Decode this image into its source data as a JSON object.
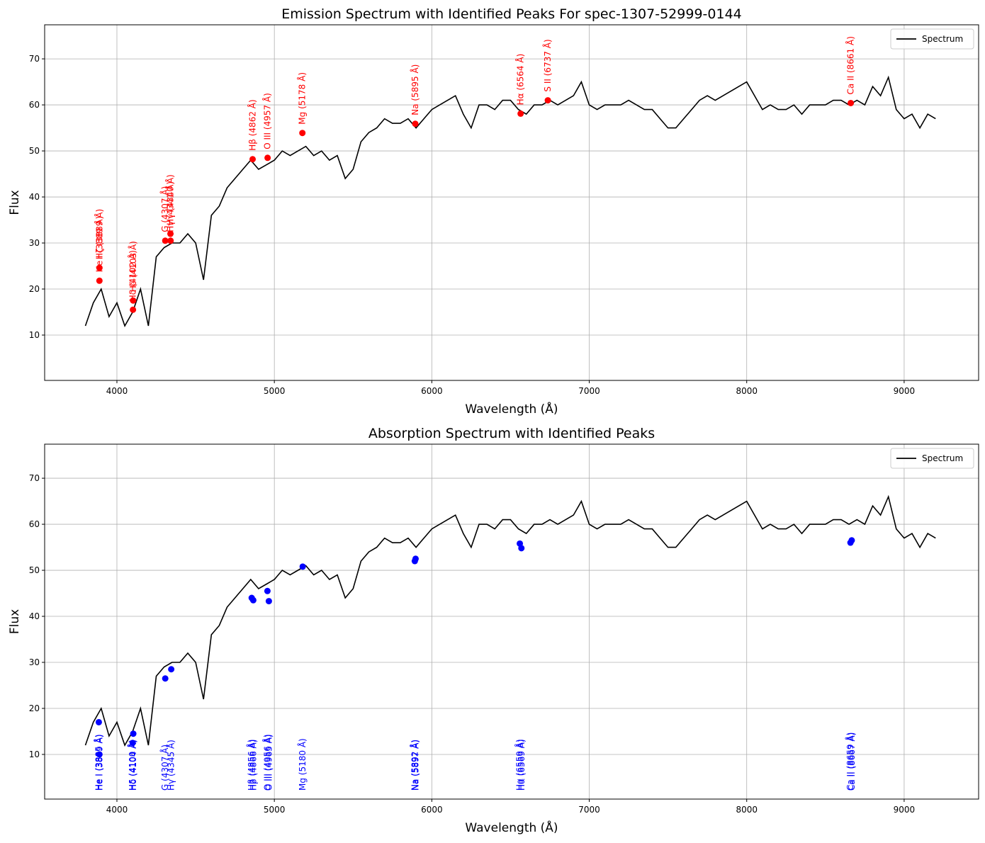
{
  "chart_data": [
    {
      "type": "line",
      "title": "Emission Spectrum with Identified Peaks For spec-1307-52999-0144",
      "x_label": "Wavelength (Å)",
      "y_label": "Flux",
      "xlim": [
        3541,
        9473
      ],
      "ylim": [
        0.15,
        77.4
      ],
      "xticks": [
        4000,
        5000,
        6000,
        7000,
        8000,
        9000
      ],
      "yticks": [
        10,
        20,
        30,
        40,
        50,
        60,
        70
      ],
      "grid": true,
      "legend": "upper right",
      "x": [
        3800,
        3850,
        3900,
        3950,
        4000,
        4050,
        4100,
        4150,
        4200,
        4250,
        4300,
        4350,
        4400,
        4450,
        4500,
        4550,
        4600,
        4650,
        4700,
        4750,
        4800,
        4850,
        4900,
        4950,
        5000,
        5050,
        5100,
        5150,
        5200,
        5250,
        5300,
        5350,
        5400,
        5450,
        5500,
        5550,
        5600,
        5650,
        5700,
        5750,
        5800,
        5850,
        5900,
        5950,
        6000,
        6050,
        6100,
        6150,
        6200,
        6250,
        6300,
        6350,
        6400,
        6450,
        6500,
        6550,
        6600,
        6650,
        6700,
        6750,
        6800,
        6850,
        6900,
        6950,
        7000,
        7050,
        7100,
        7150,
        7200,
        7250,
        7300,
        7350,
        7400,
        7450,
        7500,
        7550,
        7600,
        7650,
        7700,
        7750,
        7800,
        7850,
        7900,
        7950,
        8000,
        8050,
        8100,
        8150,
        8200,
        8250,
        8300,
        8350,
        8400,
        8450,
        8500,
        8550,
        8600,
        8650,
        8700,
        8750,
        8800,
        8850,
        8900,
        8950,
        9000,
        9050,
        9100,
        9150,
        9200
      ],
      "series": [
        {
          "name": "Spectrum",
          "color": "#000000",
          "values": [
            12,
            17,
            20,
            14,
            17,
            12,
            15,
            20,
            12,
            27,
            29,
            30,
            30,
            32,
            30,
            22,
            36,
            38,
            42,
            44,
            46,
            48,
            46,
            47,
            48,
            50,
            49,
            50,
            51,
            49,
            50,
            48,
            49,
            44,
            46,
            52,
            54,
            55,
            57,
            56,
            56,
            57,
            55,
            57,
            59,
            60,
            61,
            62,
            58,
            55,
            60,
            60,
            59,
            61,
            61,
            59,
            58,
            60,
            60,
            61,
            60,
            61,
            62,
            65,
            60,
            59,
            60,
            60,
            60,
            61,
            60,
            59,
            59,
            57,
            55,
            55,
            57,
            59,
            61,
            62,
            61,
            62,
            63,
            64,
            65,
            62,
            59,
            60,
            59,
            59,
            60,
            58,
            60,
            60,
            60,
            61,
            61,
            60,
            61,
            60,
            64,
            62,
            66,
            59,
            57,
            58,
            55,
            58,
            57
          ]
        }
      ],
      "peaks": {
        "color": "#ff0000",
        "placement": "above",
        "x": [
          3889,
          3889,
          4102,
          4103,
          4307,
          4340,
          4341,
          4862,
          4957,
          5178,
          5895,
          6564,
          6737,
          8661
        ],
        "y": [
          21.8,
          24.6,
          15.5,
          17.5,
          30.5,
          32,
          30.5,
          48.2,
          48.5,
          53.9,
          55.9,
          58.1,
          61,
          60.4
        ],
        "labels": [
          "He I (3889 Å)",
          "Hζ (3889 Å)",
          "Hδ (4102 Å)",
          "Hδ (4103 Å)",
          "G (4307 Å)",
          "Hγ (4340 Å)",
          "Hγ (4341 Å)",
          "Hβ (4862 Å)",
          "O III (4957 Å)",
          "Mg (5178 Å)",
          "Na (5895 Å)",
          "Hα (6564 Å)",
          "S II (6737 Å)",
          "Ca II (8661 Å)"
        ]
      }
    },
    {
      "type": "line",
      "title": "Absorption Spectrum with Identified Peaks",
      "x_label": "Wavelength (Å)",
      "y_label": "Flux",
      "xlim": [
        3541,
        9473
      ],
      "ylim": [
        0.3,
        77.4
      ],
      "xticks": [
        4000,
        5000,
        6000,
        7000,
        8000,
        9000
      ],
      "yticks": [
        10,
        20,
        30,
        40,
        50,
        60,
        70
      ],
      "grid": true,
      "legend": "upper right",
      "x": [
        3800,
        3850,
        3900,
        3950,
        4000,
        4050,
        4100,
        4150,
        4200,
        4250,
        4300,
        4350,
        4400,
        4450,
        4500,
        4550,
        4600,
        4650,
        4700,
        4750,
        4800,
        4850,
        4900,
        4950,
        5000,
        5050,
        5100,
        5150,
        5200,
        5250,
        5300,
        5350,
        5400,
        5450,
        5500,
        5550,
        5600,
        5650,
        5700,
        5750,
        5800,
        5850,
        5900,
        5950,
        6000,
        6050,
        6100,
        6150,
        6200,
        6250,
        6300,
        6350,
        6400,
        6450,
        6500,
        6550,
        6600,
        6650,
        6700,
        6750,
        6800,
        6850,
        6900,
        6950,
        7000,
        7050,
        7100,
        7150,
        7200,
        7250,
        7300,
        7350,
        7400,
        7450,
        7500,
        7550,
        7600,
        7650,
        7700,
        7750,
        7800,
        7850,
        7900,
        7950,
        8000,
        8050,
        8100,
        8150,
        8200,
        8250,
        8300,
        8350,
        8400,
        8450,
        8500,
        8550,
        8600,
        8650,
        8700,
        8750,
        8800,
        8850,
        8900,
        8950,
        9000,
        9050,
        9100,
        9150,
        9200
      ],
      "series": [
        {
          "name": "Spectrum",
          "color": "#000000",
          "values": [
            12,
            17,
            20,
            14,
            17,
            12,
            15,
            20,
            12,
            27,
            29,
            30,
            30,
            32,
            30,
            22,
            36,
            38,
            42,
            44,
            46,
            48,
            46,
            47,
            48,
            50,
            49,
            50,
            51,
            49,
            50,
            48,
            49,
            44,
            46,
            52,
            54,
            55,
            57,
            56,
            56,
            57,
            55,
            57,
            59,
            60,
            61,
            62,
            58,
            55,
            60,
            60,
            59,
            61,
            61,
            59,
            58,
            60,
            60,
            61,
            60,
            61,
            62,
            65,
            60,
            59,
            60,
            60,
            60,
            61,
            60,
            59,
            59,
            57,
            55,
            55,
            57,
            59,
            61,
            62,
            61,
            62,
            63,
            64,
            65,
            62,
            59,
            60,
            59,
            59,
            60,
            58,
            60,
            60,
            60,
            61,
            61,
            60,
            61,
            60,
            64,
            62,
            66,
            59,
            57,
            58,
            55,
            58,
            57
          ]
        }
      ],
      "peaks": {
        "color": "#0000ff",
        "placement": "bottom",
        "x": [
          3885,
          3889,
          4100,
          4104,
          4307,
          4345,
          4856,
          4866,
          4956,
          4965,
          5180,
          5892,
          5897,
          6559,
          6569,
          8659,
          8667
        ],
        "y": [
          17,
          10,
          12.5,
          14.5,
          26.5,
          28.5,
          44,
          43.5,
          45.5,
          43.3,
          50.8,
          52,
          52.5,
          55.8,
          54.8,
          56,
          56.5
        ],
        "labels": [
          "He I (3885 Å)",
          "He I (3889 Å)",
          "Hδ (4100 Å)",
          "Hδ (4104 Å)",
          "G (4307 Å)",
          "Hγ (4345 Å)",
          "Hβ (4856 Å)",
          "Hβ (4866 Å)",
          "O III (4956 Å)",
          "O III (4965 Å)",
          "Mg (5180 Å)",
          "Na (5892 Å)",
          "Na (5897 Å)",
          "Hα (6559 Å)",
          "Hα (6569 Å)",
          "Ca II (8659 Å)",
          "Ca II (8667 Å)"
        ]
      }
    }
  ]
}
